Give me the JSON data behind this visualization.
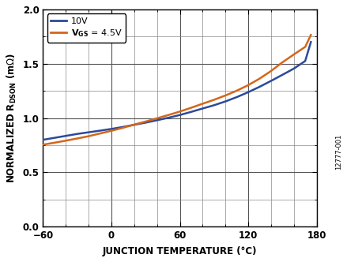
{
  "xlabel": "JUNCTION TEMPERATURE (°C)",
  "xlim": [
    -60,
    180
  ],
  "ylim": [
    0,
    2.0
  ],
  "xticks": [
    -60,
    0,
    60,
    120,
    180
  ],
  "yticks": [
    0,
    0.5,
    1.0,
    1.5,
    2.0
  ],
  "color_10v": "#2b4a9b",
  "color_45v": "#d4661a",
  "watermark": "12777-001",
  "x_10v": [
    -60,
    -50,
    -40,
    -30,
    -20,
    -10,
    0,
    10,
    20,
    30,
    40,
    50,
    60,
    70,
    80,
    90,
    100,
    110,
    120,
    130,
    140,
    150,
    160,
    170,
    175
  ],
  "y_10v": [
    0.8,
    0.818,
    0.836,
    0.854,
    0.869,
    0.884,
    0.9,
    0.918,
    0.938,
    0.958,
    0.98,
    1.003,
    1.028,
    1.057,
    1.088,
    1.118,
    1.153,
    1.193,
    1.238,
    1.288,
    1.342,
    1.398,
    1.455,
    1.525,
    1.7
  ],
  "x_45v": [
    -60,
    -50,
    -40,
    -30,
    -20,
    -10,
    0,
    10,
    20,
    30,
    40,
    50,
    60,
    70,
    80,
    90,
    100,
    110,
    120,
    130,
    140,
    150,
    160,
    170,
    175
  ],
  "y_45v": [
    0.755,
    0.773,
    0.792,
    0.812,
    0.833,
    0.858,
    0.883,
    0.91,
    0.94,
    0.968,
    0.998,
    1.028,
    1.06,
    1.095,
    1.132,
    1.168,
    1.208,
    1.252,
    1.303,
    1.363,
    1.433,
    1.513,
    1.585,
    1.655,
    1.765
  ]
}
